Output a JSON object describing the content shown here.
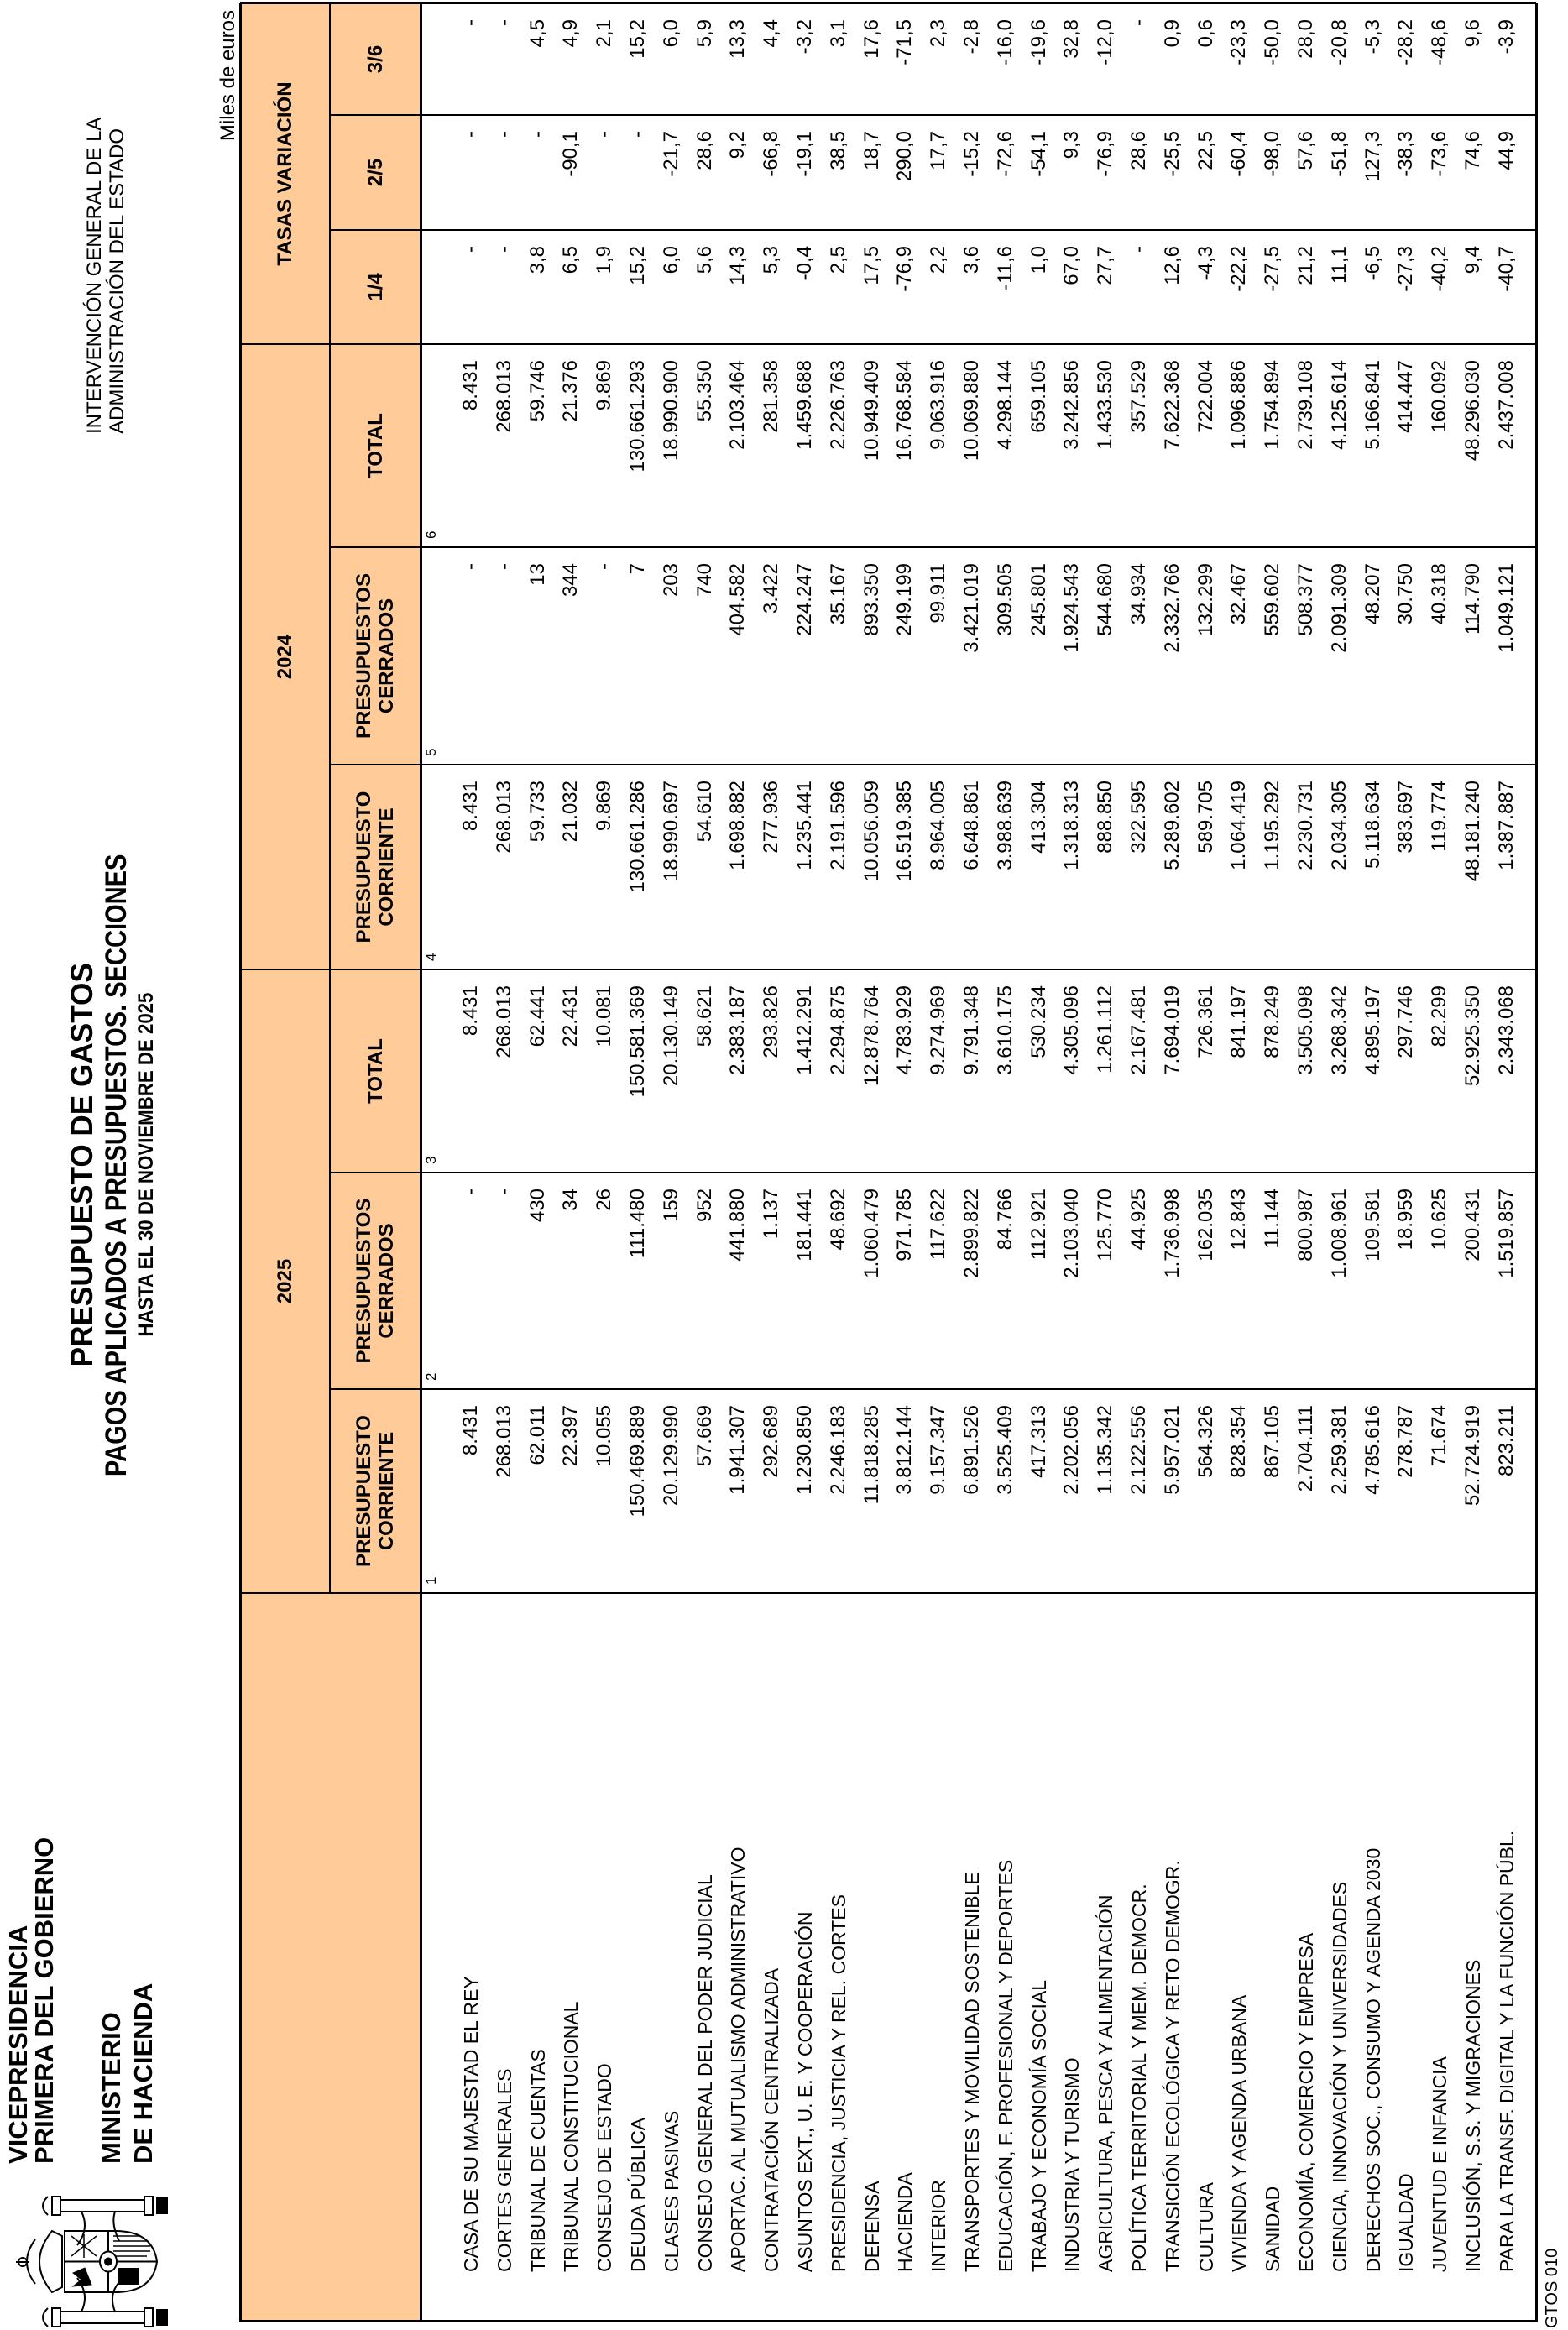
{
  "header": {
    "org_line1": "VICEPRESIDENCIA",
    "org_line2": "PRIMERA DEL GOBIERNO",
    "ministry_line1": "MINISTERIO",
    "ministry_line2": "DE HACIENDA",
    "title": "PRESUPUESTO DE GASTOS",
    "subtitle": "PAGOS APLICADOS A PRESUPUESTOS. SECCIONES",
    "date_line": "HASTA EL 30 DE NOVIEMBRE DE 2025",
    "agency_line1": "INTERVENCIÓN GENERAL DE LA",
    "agency_line2": "ADMINISTRACIÓN DEL ESTADO",
    "units": "Miles de euros",
    "logo": "coat-of-arms-of-spain"
  },
  "colors": {
    "header_fill": "#ffcc99",
    "border": "#000000"
  },
  "table": {
    "groups": [
      "2025",
      "2024",
      "TASAS VARIACIÓN"
    ],
    "columns": [
      {
        "label": "PRESUPUESTO CORRIENTE",
        "num": "1"
      },
      {
        "label": "PRESUPUESTOS CERRADOS",
        "num": "2"
      },
      {
        "label": "TOTAL",
        "num": "3"
      },
      {
        "label": "PRESUPUESTO CORRIENTE",
        "num": "4"
      },
      {
        "label": "PRESUPUESTOS CERRADOS",
        "num": "5"
      },
      {
        "label": "TOTAL",
        "num": "6"
      },
      {
        "label": "1/4"
      },
      {
        "label": "2/5"
      },
      {
        "label": "3/6"
      }
    ],
    "rows": [
      {
        "section": "CASA DE SU MAJESTAD EL REY",
        "values": [
          "8.431",
          "-",
          "8.431",
          "8.431",
          "-",
          "8.431",
          "-",
          "-",
          "-"
        ]
      },
      {
        "section": "CORTES GENERALES",
        "values": [
          "268.013",
          "-",
          "268.013",
          "268.013",
          "-",
          "268.013",
          "-",
          "-",
          "-"
        ]
      },
      {
        "section": "TRIBUNAL DE CUENTAS",
        "values": [
          "62.011",
          "430",
          "62.441",
          "59.733",
          "13",
          "59.746",
          "3,8",
          "-",
          "4,5"
        ]
      },
      {
        "section": "TRIBUNAL CONSTITUCIONAL",
        "values": [
          "22.397",
          "34",
          "22.431",
          "21.032",
          "344",
          "21.376",
          "6,5",
          "-90,1",
          "4,9"
        ]
      },
      {
        "section": "CONSEJO DE ESTADO",
        "values": [
          "10.055",
          "26",
          "10.081",
          "9.869",
          "-",
          "9.869",
          "1,9",
          "-",
          "2,1"
        ]
      },
      {
        "section": "DEUDA PÚBLICA",
        "values": [
          "150.469.889",
          "111.480",
          "150.581.369",
          "130.661.286",
          "7",
          "130.661.293",
          "15,2",
          "-",
          "15,2"
        ]
      },
      {
        "section": "CLASES PASIVAS",
        "values": [
          "20.129.990",
          "159",
          "20.130.149",
          "18.990.697",
          "203",
          "18.990.900",
          "6,0",
          "-21,7",
          "6,0"
        ]
      },
      {
        "section": "CONSEJO GENERAL DEL PODER JUDICIAL",
        "values": [
          "57.669",
          "952",
          "58.621",
          "54.610",
          "740",
          "55.350",
          "5,6",
          "28,6",
          "5,9"
        ]
      },
      {
        "section": "APORTAC. AL MUTUALISMO ADMINISTRATIVO",
        "values": [
          "1.941.307",
          "441.880",
          "2.383.187",
          "1.698.882",
          "404.582",
          "2.103.464",
          "14,3",
          "9,2",
          "13,3"
        ]
      },
      {
        "section": "CONTRATACIÓN CENTRALIZADA",
        "values": [
          "292.689",
          "1.137",
          "293.826",
          "277.936",
          "3.422",
          "281.358",
          "5,3",
          "-66,8",
          "4,4"
        ]
      },
      {
        "section": "ASUNTOS EXT., U. E. Y COOPERACIÓN",
        "values": [
          "1.230.850",
          "181.441",
          "1.412.291",
          "1.235.441",
          "224.247",
          "1.459.688",
          "-0,4",
          "-19,1",
          "-3,2"
        ]
      },
      {
        "section": "PRESIDENCIA, JUSTICIA Y REL. CORTES",
        "values": [
          "2.246.183",
          "48.692",
          "2.294.875",
          "2.191.596",
          "35.167",
          "2.226.763",
          "2,5",
          "38,5",
          "3,1"
        ]
      },
      {
        "section": "DEFENSA",
        "values": [
          "11.818.285",
          "1.060.479",
          "12.878.764",
          "10.056.059",
          "893.350",
          "10.949.409",
          "17,5",
          "18,7",
          "17,6"
        ]
      },
      {
        "section": "HACIENDA",
        "values": [
          "3.812.144",
          "971.785",
          "4.783.929",
          "16.519.385",
          "249.199",
          "16.768.584",
          "-76,9",
          "290,0",
          "-71,5"
        ]
      },
      {
        "section": "INTERIOR",
        "values": [
          "9.157.347",
          "117.622",
          "9.274.969",
          "8.964.005",
          "99.911",
          "9.063.916",
          "2,2",
          "17,7",
          "2,3"
        ]
      },
      {
        "section": "TRANSPORTES Y MOVILIDAD SOSTENIBLE",
        "values": [
          "6.891.526",
          "2.899.822",
          "9.791.348",
          "6.648.861",
          "3.421.019",
          "10.069.880",
          "3,6",
          "-15,2",
          "-2,8"
        ]
      },
      {
        "section": "EDUCACIÓN, F. PROFESIONAL Y DEPORTES",
        "values": [
          "3.525.409",
          "84.766",
          "3.610.175",
          "3.988.639",
          "309.505",
          "4.298.144",
          "-11,6",
          "-72,6",
          "-16,0"
        ]
      },
      {
        "section": "TRABAJO Y ECONOMÍA SOCIAL",
        "values": [
          "417.313",
          "112.921",
          "530.234",
          "413.304",
          "245.801",
          "659.105",
          "1,0",
          "-54,1",
          "-19,6"
        ]
      },
      {
        "section": "INDUSTRIA Y TURISMO",
        "values": [
          "2.202.056",
          "2.103.040",
          "4.305.096",
          "1.318.313",
          "1.924.543",
          "3.242.856",
          "67,0",
          "9,3",
          "32,8"
        ]
      },
      {
        "section": "AGRICULTURA, PESCA Y ALIMENTACIÓN",
        "values": [
          "1.135.342",
          "125.770",
          "1.261.112",
          "888.850",
          "544.680",
          "1.433.530",
          "27,7",
          "-76,9",
          "-12,0"
        ]
      },
      {
        "section": "POLÍTICA TERRITORIAL Y MEM. DEMOCR.",
        "values": [
          "2.122.556",
          "44.925",
          "2.167.481",
          "322.595",
          "34.934",
          "357.529",
          "-",
          "28,6",
          "-"
        ]
      },
      {
        "section": "TRANSICIÓN ECOLÓGICA Y RETO DEMOGR.",
        "values": [
          "5.957.021",
          "1.736.998",
          "7.694.019",
          "5.289.602",
          "2.332.766",
          "7.622.368",
          "12,6",
          "-25,5",
          "0,9"
        ]
      },
      {
        "section": "CULTURA",
        "values": [
          "564.326",
          "162.035",
          "726.361",
          "589.705",
          "132.299",
          "722.004",
          "-4,3",
          "22,5",
          "0,6"
        ]
      },
      {
        "section": "VIVIENDA Y AGENDA URBANA",
        "values": [
          "828.354",
          "12.843",
          "841.197",
          "1.064.419",
          "32.467",
          "1.096.886",
          "-22,2",
          "-60,4",
          "-23,3"
        ]
      },
      {
        "section": "SANIDAD",
        "values": [
          "867.105",
          "11.144",
          "878.249",
          "1.195.292",
          "559.602",
          "1.754.894",
          "-27,5",
          "-98,0",
          "-50,0"
        ]
      },
      {
        "section": "ECONOMÍA, COMERCIO Y EMPRESA",
        "values": [
          "2.704.111",
          "800.987",
          "3.505.098",
          "2.230.731",
          "508.377",
          "2.739.108",
          "21,2",
          "57,6",
          "28,0"
        ]
      },
      {
        "section": "CIENCIA, INNOVACIÓN Y UNIVERSIDADES",
        "values": [
          "2.259.381",
          "1.008.961",
          "3.268.342",
          "2.034.305",
          "2.091.309",
          "4.125.614",
          "11,1",
          "-51,8",
          "-20,8"
        ]
      },
      {
        "section": "DERECHOS SOC., CONSUMO Y AGENDA 2030",
        "values": [
          "4.785.616",
          "109.581",
          "4.895.197",
          "5.118.634",
          "48.207",
          "5.166.841",
          "-6,5",
          "127,3",
          "-5,3"
        ]
      },
      {
        "section": "IGUALDAD",
        "values": [
          "278.787",
          "18.959",
          "297.746",
          "383.697",
          "30.750",
          "414.447",
          "-27,3",
          "-38,3",
          "-28,2"
        ]
      },
      {
        "section": "JUVENTUD E INFANCIA",
        "values": [
          "71.674",
          "10.625",
          "82.299",
          "119.774",
          "40.318",
          "160.092",
          "-40,2",
          "-73,6",
          "-48,6"
        ]
      },
      {
        "section": "INCLUSIÓN, S.S. Y MIGRACIONES",
        "values": [
          "52.724.919",
          "200.431",
          "52.925.350",
          "48.181.240",
          "114.790",
          "48.296.030",
          "9,4",
          "74,6",
          "9,6"
        ]
      },
      {
        "section": "PARA LA TRANSF. DIGITAL Y LA FUNCIÓN PÚBL.",
        "values": [
          "823.211",
          "1.519.857",
          "2.343.068",
          "1.387.887",
          "1.049.121",
          "2.437.008",
          "-40,7",
          "44,9",
          "-3,9"
        ]
      }
    ]
  },
  "footer": {
    "code": "GTOS 010"
  }
}
